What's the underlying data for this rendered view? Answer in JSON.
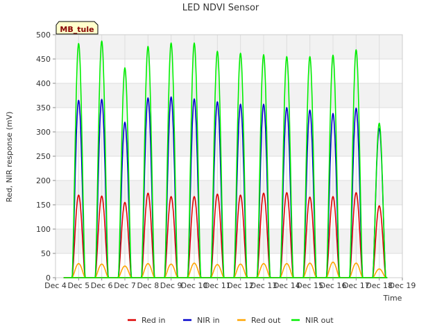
{
  "chart_data": {
    "type": "line",
    "title": "LED NDVI Sensor",
    "xlabel": "Time",
    "ylabel": "Red, NIR response (mV)",
    "badge": "MB_tule",
    "ylim": [
      0,
      500
    ],
    "yticks": [
      0,
      50,
      100,
      150,
      200,
      250,
      300,
      350,
      400,
      450,
      500
    ],
    "xlim": [
      4,
      19
    ],
    "xticks": [
      {
        "value": 4,
        "label": "Dec 4"
      },
      {
        "value": 5,
        "label": "Dec 5"
      },
      {
        "value": 6,
        "label": "Dec 6"
      },
      {
        "value": 7,
        "label": "Dec 7"
      },
      {
        "value": 8,
        "label": "Dec 8"
      },
      {
        "value": 9,
        "label": "Dec 9"
      },
      {
        "value": 10,
        "label": "Dec 10"
      },
      {
        "value": 11,
        "label": "Dec 11"
      },
      {
        "value": 12,
        "label": "Dec 12"
      },
      {
        "value": 13,
        "label": "Dec 13"
      },
      {
        "value": 14,
        "label": "Dec 14"
      },
      {
        "value": 15,
        "label": "Dec 15"
      },
      {
        "value": 16,
        "label": "Dec 16"
      },
      {
        "value": 17,
        "label": "Dec 17"
      },
      {
        "value": 18,
        "label": "Dec 18"
      },
      {
        "value": 19,
        "label": "Dec 19"
      }
    ],
    "series": [
      {
        "name": "Red in",
        "color": "#dd0000",
        "peak_day": [
          5.0,
          6.0,
          7.0,
          8.0,
          9.0,
          10.0,
          11.0,
          12.0,
          13.0,
          14.0,
          15.0,
          16.0,
          17.0,
          18.0
        ],
        "peaks": [
          170,
          168,
          155,
          174,
          167,
          167,
          172,
          170,
          174,
          175,
          166,
          167,
          175,
          148
        ]
      },
      {
        "name": "NIR in",
        "color": "#0000cc",
        "peak_day": [
          5.0,
          6.0,
          7.0,
          8.0,
          9.0,
          10.0,
          11.0,
          12.0,
          13.0,
          14.0,
          15.0,
          16.0,
          17.0,
          18.0
        ],
        "peaks": [
          365,
          367,
          320,
          370,
          372,
          368,
          362,
          357,
          357,
          350,
          345,
          338,
          349,
          307
        ]
      },
      {
        "name": "Red out",
        "color": "#ffa500",
        "peak_day": [
          5.0,
          6.0,
          7.0,
          8.0,
          9.0,
          10.0,
          11.0,
          12.0,
          13.0,
          14.0,
          15.0,
          16.0,
          17.0,
          18.0
        ],
        "peaks": [
          29,
          28,
          24,
          29,
          28,
          30,
          27,
          28,
          29,
          29,
          30,
          32,
          30,
          18
        ]
      },
      {
        "name": "NIR out",
        "color": "#00ee00",
        "peak_day": [
          5.0,
          6.0,
          7.0,
          8.0,
          9.0,
          10.0,
          11.0,
          12.0,
          13.0,
          14.0,
          15.0,
          16.0,
          17.0,
          18.0
        ],
        "peaks": [
          482,
          487,
          432,
          476,
          483,
          483,
          466,
          462,
          459,
          455,
          455,
          458,
          469,
          318
        ]
      }
    ]
  }
}
